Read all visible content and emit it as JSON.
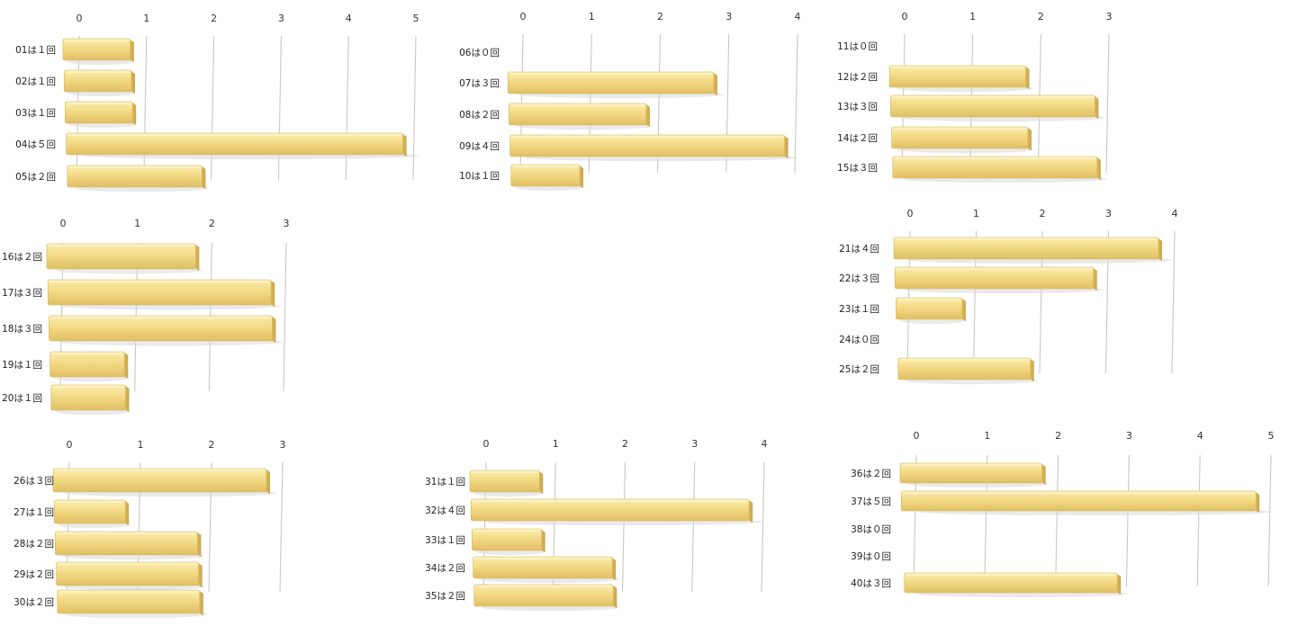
{
  "colors": {
    "bar_light": "#fbeeb0",
    "bar_main": "#f3da85",
    "bar_dark": "#c9a64a",
    "grid": "#c8c8c8",
    "text": "#333333"
  },
  "chart_data": [
    {
      "type": "bar",
      "orientation": "horizontal",
      "categories": [
        "01は１回",
        "02は１回",
        "03は１回",
        "04は５回",
        "05は２回"
      ],
      "values": [
        1,
        1,
        1,
        5,
        2
      ],
      "xlim": [
        0,
        5
      ],
      "ticks": [
        "0",
        "1",
        "2",
        "3",
        "4",
        "5"
      ]
    },
    {
      "type": "bar",
      "orientation": "horizontal",
      "categories": [
        "06は０回",
        "07は３回",
        "08は２回",
        "09は４回",
        "10は１回"
      ],
      "values": [
        0,
        3,
        2,
        4,
        1
      ],
      "xlim": [
        0,
        4
      ],
      "ticks": [
        "0",
        "1",
        "2",
        "3",
        "4"
      ]
    },
    {
      "type": "bar",
      "orientation": "horizontal",
      "categories": [
        "11は０回",
        "12は２回",
        "13は３回",
        "14は２回",
        "15は３回"
      ],
      "values": [
        0,
        2,
        3,
        2,
        3
      ],
      "xlim": [
        0,
        3
      ],
      "ticks": [
        "0",
        "1",
        "2",
        "3"
      ]
    },
    {
      "type": "bar",
      "orientation": "horizontal",
      "categories": [
        "16は２回",
        "17は３回",
        "18は３回",
        "19は１回",
        "20は１回"
      ],
      "values": [
        2,
        3,
        3,
        1,
        1
      ],
      "xlim": [
        0,
        3
      ],
      "ticks": [
        "0",
        "1",
        "2",
        "3"
      ]
    },
    {
      "type": "bar",
      "orientation": "horizontal",
      "categories": [
        "21は４回",
        "22は３回",
        "23は１回",
        "24は０回",
        "25は２回"
      ],
      "values": [
        4,
        3,
        1,
        0,
        2
      ],
      "xlim": [
        0,
        4
      ],
      "ticks": [
        "0",
        "1",
        "2",
        "3",
        "4"
      ]
    },
    {
      "type": "bar",
      "orientation": "horizontal",
      "categories": [
        "26は３回",
        "27は１回",
        "28は２回",
        "29は２回",
        "30は２回"
      ],
      "values": [
        3,
        1,
        2,
        2,
        2
      ],
      "xlim": [
        0,
        3
      ],
      "ticks": [
        "0",
        "1",
        "2",
        "3"
      ]
    },
    {
      "type": "bar",
      "orientation": "horizontal",
      "categories": [
        "31は１回",
        "32は４回",
        "33は１回",
        "34は２回",
        "35は２回"
      ],
      "values": [
        1,
        4,
        1,
        2,
        2
      ],
      "xlim": [
        0,
        4
      ],
      "ticks": [
        "0",
        "1",
        "2",
        "3",
        "4"
      ]
    },
    {
      "type": "bar",
      "orientation": "horizontal",
      "categories": [
        "36は２回",
        "37は５回",
        "38は０回",
        "39は０回",
        "40は３回"
      ],
      "values": [
        2,
        5,
        0,
        0,
        3
      ],
      "xlim": [
        0,
        5
      ],
      "ticks": [
        "0",
        "1",
        "2",
        "3",
        "4",
        "5"
      ]
    }
  ]
}
